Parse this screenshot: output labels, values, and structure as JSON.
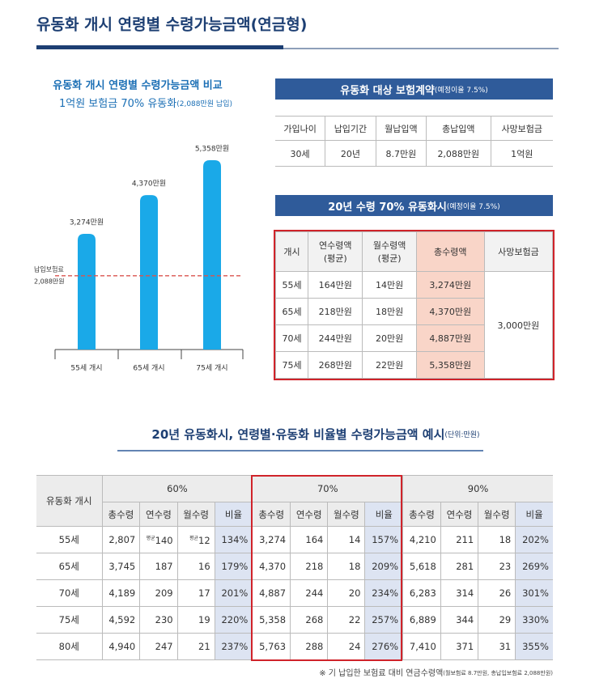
{
  "header": {
    "title": "유동화 개시 연령별 수령가능금액(연금형)"
  },
  "chart_data": {
    "type": "bar",
    "title": "유동화 개시 연령별 수령가능금액 비교",
    "subtitle": "1억원 보험금 70% 유동화",
    "subtitle_note": "(2,088만원 납입)",
    "categories": [
      "55세 개시",
      "65세 개시",
      "75세 개시"
    ],
    "values": [
      3274,
      4370,
      5358
    ],
    "value_labels": [
      "3,274만원",
      "4,370만원",
      "5,358만원"
    ],
    "color": "#1aa9e8",
    "ylim": [
      0,
      6000
    ],
    "reference_line": {
      "label": "납입보험료",
      "value": 2088,
      "value_label": "2,088만원",
      "color": "#d9534f"
    }
  },
  "table1": {
    "title": "유동화 대상 보험계약",
    "note": "(예정이율 7.5%)",
    "columns": [
      "가입나이",
      "납입기간",
      "월납입액",
      "총납입액",
      "사망보험금"
    ],
    "rows": [
      [
        "30세",
        "20년",
        "8.7만원",
        "2,088만원",
        "1억원"
      ]
    ]
  },
  "table2": {
    "title": "20년 수령 70% 유동화시",
    "note": "(예정이율 7.5%)",
    "columns": [
      "개시",
      "연수령액\n(평균)",
      "월수령액\n(평균)",
      "총수령액",
      "사망보험금"
    ],
    "rows": [
      [
        "55세",
        "164만원",
        "14만원",
        "3,274만원"
      ],
      [
        "65세",
        "218만원",
        "18만원",
        "4,370만원"
      ],
      [
        "70세",
        "244만원",
        "20만원",
        "4,887만원"
      ],
      [
        "75세",
        "268만원",
        "22만원",
        "5,358만원"
      ]
    ],
    "death_benefit": "3,000만원"
  },
  "table3": {
    "title": "20년 유동화시, 연령별·유동화 비율별 수령가능금액 예시",
    "note": "(단위:만원)",
    "row_header": "유동화 개시",
    "groups": [
      "60%",
      "70%",
      "90%"
    ],
    "subcolumns": [
      "총수령",
      "연수령",
      "월수령",
      "비율"
    ],
    "rows": [
      {
        "age": "55세",
        "cells": [
          "2,807",
          {
            "note": "평균",
            "text": "140"
          },
          {
            "note": "평균",
            "text": "12"
          },
          "134%",
          "3,274",
          "164",
          "14",
          "157%",
          "4,210",
          "211",
          "18",
          "202%"
        ]
      },
      {
        "age": "65세",
        "cells": [
          "3,745",
          "187",
          "16",
          "179%",
          "4,370",
          "218",
          "18",
          "209%",
          "5,618",
          "281",
          "23",
          "269%"
        ]
      },
      {
        "age": "70세",
        "cells": [
          "4,189",
          "209",
          "17",
          "201%",
          "4,887",
          "244",
          "20",
          "234%",
          "6,283",
          "314",
          "26",
          "301%"
        ]
      },
      {
        "age": "75세",
        "cells": [
          "4,592",
          "230",
          "19",
          "220%",
          "5,358",
          "268",
          "22",
          "257%",
          "6,889",
          "344",
          "29",
          "330%"
        ]
      },
      {
        "age": "80세",
        "cells": [
          "4,940",
          "247",
          "21",
          "237%",
          "5,763",
          "288",
          "24",
          "276%",
          "7,410",
          "371",
          "31",
          "355%"
        ]
      }
    ],
    "footnote": "※ 기 납입한 보험료 대비 연금수령액",
    "footnote_detail": "(월보험료 8.7만원, 총납입보험료 2,088만원)"
  }
}
